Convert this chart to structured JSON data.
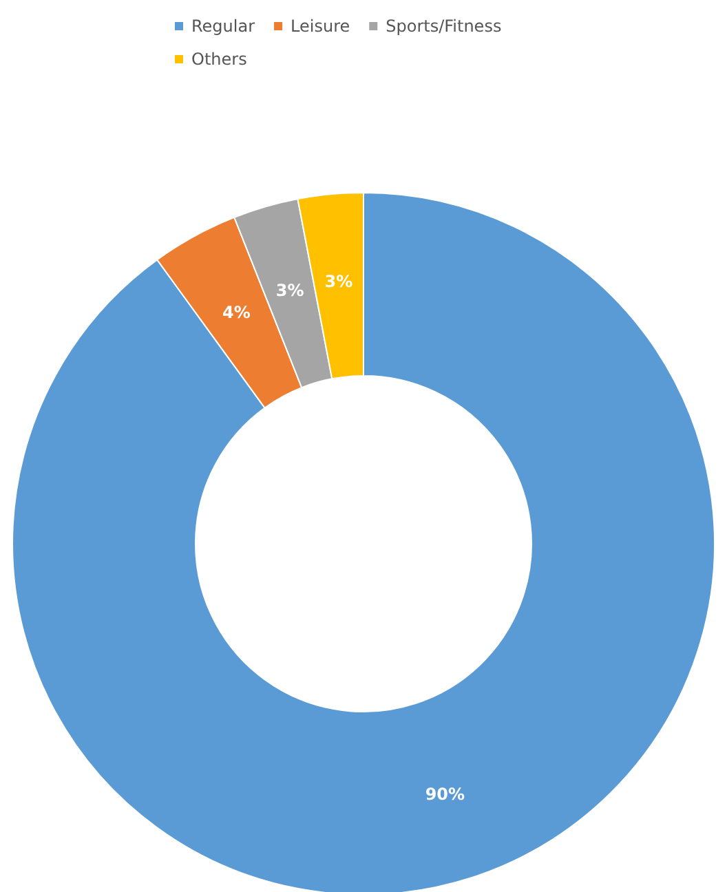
{
  "chart_data": {
    "type": "donut",
    "categories": [
      "Regular",
      "Leisure",
      "Sports/Fitness",
      "Others"
    ],
    "values": [
      90,
      4,
      3,
      3
    ],
    "colors": [
      "#5b9bd5",
      "#ed7d31",
      "#a5a5a5",
      "#ffc000"
    ],
    "value_labels": [
      "90%",
      "4%",
      "3%",
      "3%"
    ],
    "legend": "top"
  }
}
